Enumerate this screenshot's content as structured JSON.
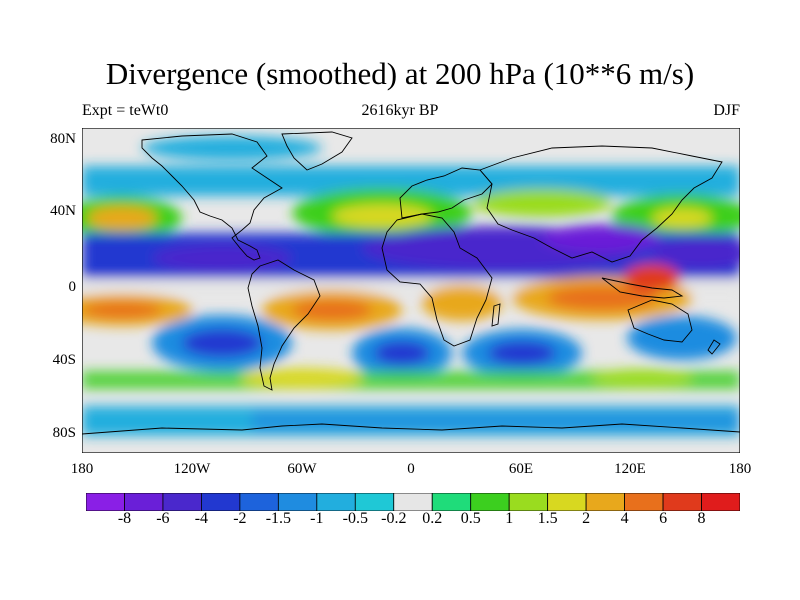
{
  "title": "Divergence (smoothed) at 200 hPa (10**6 m/s)",
  "subtitle_left": "Expt = teWt0",
  "subtitle_center": "2616kyr BP",
  "subtitle_right": "DJF",
  "map": {
    "projection": "cylindrical-equidistant",
    "lon_range": [
      -180,
      180
    ],
    "lat_range": [
      -90,
      90
    ],
    "lat_ticks": [
      "80N",
      "40N",
      "0",
      "40S",
      "80S"
    ],
    "lat_tick_values": [
      80,
      40,
      0,
      -40,
      -80
    ],
    "lon_ticks": [
      "180",
      "120W",
      "60W",
      "0",
      "60E",
      "120E",
      "180"
    ],
    "lon_tick_values": [
      -180,
      -120,
      -60,
      0,
      60,
      120,
      180
    ],
    "background_color": "#e8e8e8",
    "coastline_color": "#000000"
  },
  "colorbar": {
    "labels": [
      "-8",
      "-6",
      "-4",
      "-2",
      "-1.5",
      "-1",
      "-0.5",
      "-0.2",
      "0.2",
      "0.5",
      "1",
      "1.5",
      "2",
      "4",
      "6",
      "8"
    ],
    "colors": [
      "#8a1fe6",
      "#6a1fd8",
      "#4a28cc",
      "#2238d0",
      "#1d63dc",
      "#1f8ce0",
      "#22aede",
      "#1fc8d6",
      "#e6e6e6",
      "#1fdc7a",
      "#3ccf1f",
      "#9adc1f",
      "#d8d820",
      "#e8a81c",
      "#e8701c",
      "#e03a1c",
      "#e01c1c"
    ]
  }
}
